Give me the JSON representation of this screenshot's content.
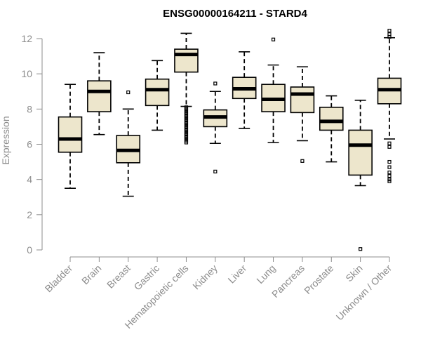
{
  "chart_data": {
    "type": "boxplot",
    "title": "ENSG00000164211 - STARD4",
    "ylabel": "Expression",
    "xlabel": "",
    "ylim": [
      0,
      12
    ],
    "yticks": [
      0,
      2,
      4,
      6,
      8,
      10,
      12
    ],
    "box_color": "#ede6cc",
    "categories": [
      "Bladder",
      "Brain",
      "Breast",
      "Gastric",
      "Hematopoietic cells",
      "Kidney",
      "Liver",
      "Lung",
      "Pancreas",
      "Prostate",
      "Skin",
      "Unknown / Other"
    ],
    "boxes": [
      {
        "category": "Bladder",
        "whislo": 3.5,
        "q1": 5.55,
        "med": 6.3,
        "q3": 7.55,
        "whishi": 9.4,
        "fliers": []
      },
      {
        "category": "Brain",
        "whislo": 6.55,
        "q1": 7.85,
        "med": 9.0,
        "q3": 9.6,
        "whishi": 11.2,
        "fliers": []
      },
      {
        "category": "Breast",
        "whislo": 3.05,
        "q1": 4.95,
        "med": 5.65,
        "q3": 6.5,
        "whishi": 8.0,
        "fliers": [
          8.95
        ]
      },
      {
        "category": "Gastric",
        "whislo": 6.8,
        "q1": 8.2,
        "med": 9.1,
        "q3": 9.7,
        "whishi": 10.75,
        "fliers": []
      },
      {
        "category": "Hematopoietic cells",
        "whislo": 8.15,
        "q1": 10.1,
        "med": 11.1,
        "q3": 11.4,
        "whishi": 12.3,
        "fliers": [
          8.1,
          8.0,
          7.9,
          7.8,
          7.7,
          7.6,
          7.5,
          7.4,
          7.3,
          7.2,
          7.1,
          7.0,
          6.9,
          6.8,
          6.7,
          6.6,
          6.5,
          6.4,
          6.3,
          6.2,
          6.1
        ]
      },
      {
        "category": "Kidney",
        "whislo": 6.05,
        "q1": 7.0,
        "med": 7.55,
        "q3": 7.95,
        "whishi": 9.0,
        "fliers": [
          9.45,
          4.45
        ]
      },
      {
        "category": "Liver",
        "whislo": 6.9,
        "q1": 8.6,
        "med": 9.15,
        "q3": 9.8,
        "whishi": 11.25,
        "fliers": []
      },
      {
        "category": "Lung",
        "whislo": 6.1,
        "q1": 7.85,
        "med": 8.55,
        "q3": 9.4,
        "whishi": 10.5,
        "fliers": [
          11.95
        ]
      },
      {
        "category": "Pancreas",
        "whislo": 6.2,
        "q1": 7.8,
        "med": 8.85,
        "q3": 9.25,
        "whishi": 10.4,
        "fliers": [
          5.05
        ]
      },
      {
        "category": "Prostate",
        "whislo": 5.0,
        "q1": 6.8,
        "med": 7.3,
        "q3": 8.1,
        "whishi": 8.75,
        "fliers": []
      },
      {
        "category": "Skin",
        "whislo": 3.65,
        "q1": 4.25,
        "med": 5.95,
        "q3": 6.8,
        "whishi": 8.5,
        "fliers": [
          0.05
        ]
      },
      {
        "category": "Unknown / Other",
        "whislo": 6.3,
        "q1": 8.3,
        "med": 9.1,
        "q3": 9.75,
        "whishi": 12.05,
        "fliers": [
          12.45,
          12.25,
          12.1,
          6.05,
          5.85,
          5.0,
          4.7,
          4.4,
          4.2,
          4.0,
          3.9
        ]
      }
    ]
  }
}
